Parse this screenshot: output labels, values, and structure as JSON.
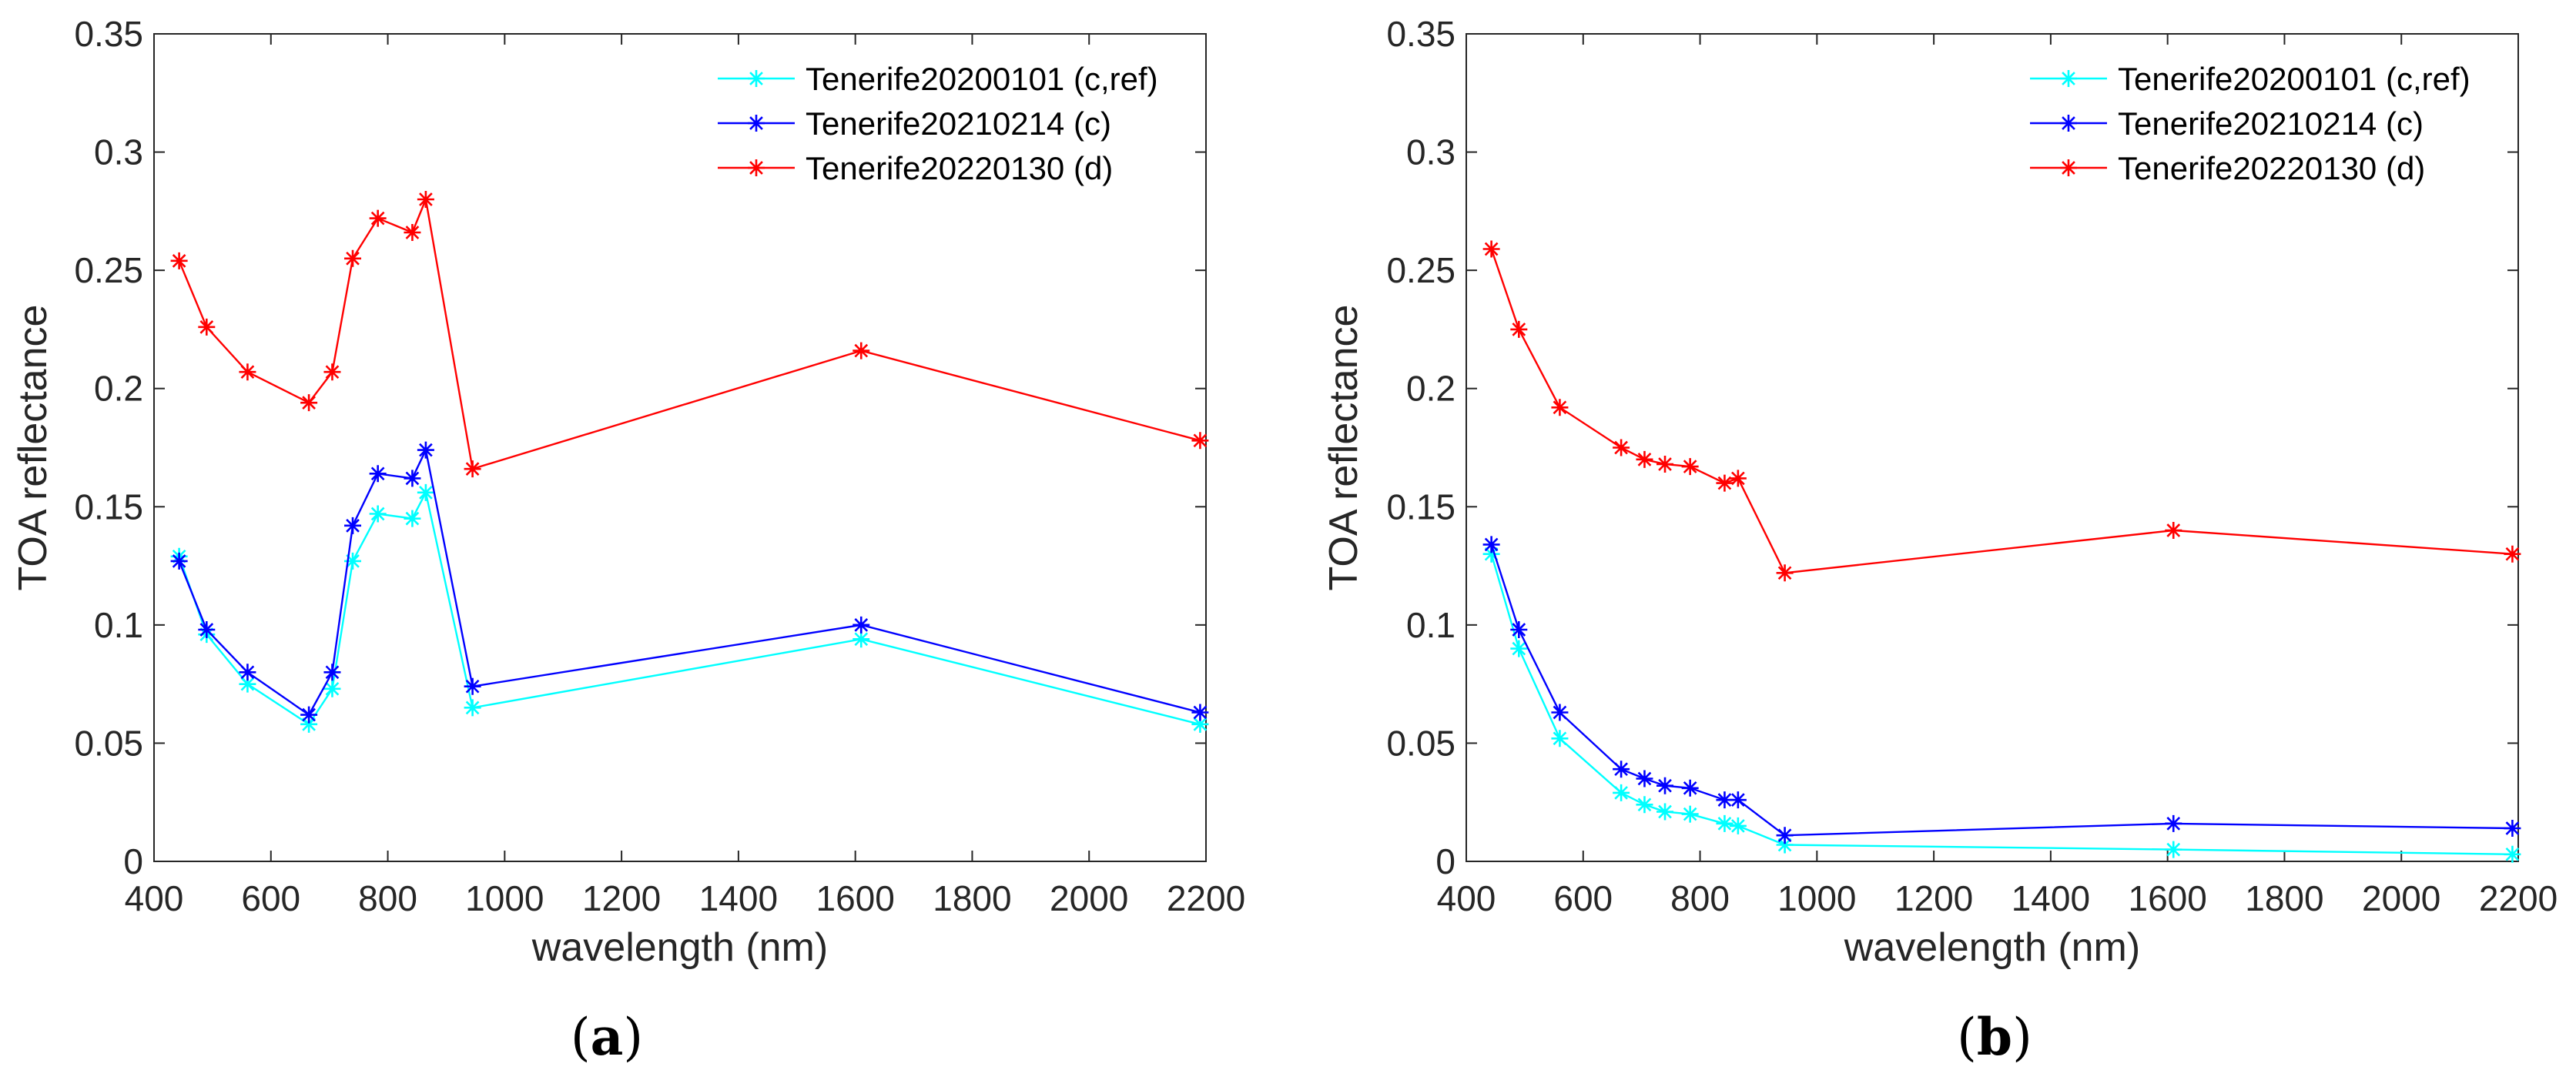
{
  "chart_data": [
    {
      "type": "line",
      "panel_label_open": "(",
      "panel_label_letter": "a",
      "panel_label_close": ")",
      "xlabel": "wavelength (nm)",
      "ylabel": "TOA reflectance",
      "xlim": [
        400,
        2200
      ],
      "ylim": [
        0,
        0.35
      ],
      "xticks": [
        400,
        600,
        800,
        1000,
        1200,
        1400,
        1600,
        1800,
        2000,
        2200
      ],
      "xtick_labels": [
        "400",
        "600",
        "800",
        "1000",
        "1200",
        "1400",
        "1600",
        "1800",
        "2000",
        "2200"
      ],
      "yticks": [
        0,
        0.05,
        0.1,
        0.15,
        0.2,
        0.25,
        0.3,
        0.35
      ],
      "ytick_labels": [
        "0",
        "0.05",
        "0.1",
        "0.15",
        "0.2",
        "0.25",
        "0.3",
        "0.35"
      ],
      "legend_position": "top-right",
      "x": [
        443,
        490,
        560,
        665,
        705,
        740,
        783,
        842,
        865,
        945,
        1610,
        2190
      ],
      "series": [
        {
          "name": "Tenerife20200101 (c,ref)",
          "color": "#00ffff",
          "values": [
            0.129,
            0.096,
            0.075,
            0.058,
            0.073,
            0.127,
            0.147,
            0.145,
            0.156,
            0.065,
            0.094,
            0.058
          ]
        },
        {
          "name": "Tenerife20210214 (c)",
          "color": "#0000ff",
          "values": [
            0.127,
            0.098,
            0.08,
            0.062,
            0.08,
            0.142,
            0.164,
            0.162,
            0.174,
            0.074,
            0.1,
            0.063
          ]
        },
        {
          "name": "Tenerife20220130 (d)",
          "color": "#ff0000",
          "values": [
            0.254,
            0.226,
            0.207,
            0.194,
            0.207,
            0.255,
            0.272,
            0.266,
            0.28,
            0.166,
            0.216,
            0.178
          ]
        }
      ]
    },
    {
      "type": "line",
      "panel_label_open": "(",
      "panel_label_letter": "b",
      "panel_label_close": ")",
      "xlabel": "wavelength (nm)",
      "ylabel": "TOA reflectance",
      "xlim": [
        400,
        2200
      ],
      "ylim": [
        0,
        0.35
      ],
      "xticks": [
        400,
        600,
        800,
        1000,
        1200,
        1400,
        1600,
        1800,
        2000,
        2200
      ],
      "xtick_labels": [
        "400",
        "600",
        "800",
        "1000",
        "1200",
        "1400",
        "1600",
        "1800",
        "2000",
        "2200"
      ],
      "yticks": [
        0,
        0.05,
        0.1,
        0.15,
        0.2,
        0.25,
        0.3,
        0.35
      ],
      "ytick_labels": [
        "0",
        "0.05",
        "0.1",
        "0.15",
        "0.2",
        "0.25",
        "0.3",
        "0.35"
      ],
      "legend_position": "top-right",
      "x": [
        443,
        490,
        560,
        665,
        705,
        740,
        783,
        842,
        865,
        945,
        1610,
        2190
      ],
      "series": [
        {
          "name": "Tenerife20200101 (c,ref)",
          "color": "#00ffff",
          "values": [
            0.13,
            0.09,
            0.052,
            0.029,
            0.024,
            0.021,
            0.02,
            0.016,
            0.015,
            0.007,
            0.005,
            0.003
          ]
        },
        {
          "name": "Tenerife20210214 (c)",
          "color": "#0000ff",
          "values": [
            0.134,
            0.098,
            0.063,
            0.039,
            0.035,
            0.032,
            0.031,
            0.026,
            0.026,
            0.011,
            0.016,
            0.014
          ]
        },
        {
          "name": "Tenerife20220130 (d)",
          "color": "#ff0000",
          "values": [
            0.259,
            0.225,
            0.192,
            0.175,
            0.17,
            0.168,
            0.167,
            0.16,
            0.162,
            0.122,
            0.14,
            0.13
          ]
        }
      ]
    }
  ]
}
